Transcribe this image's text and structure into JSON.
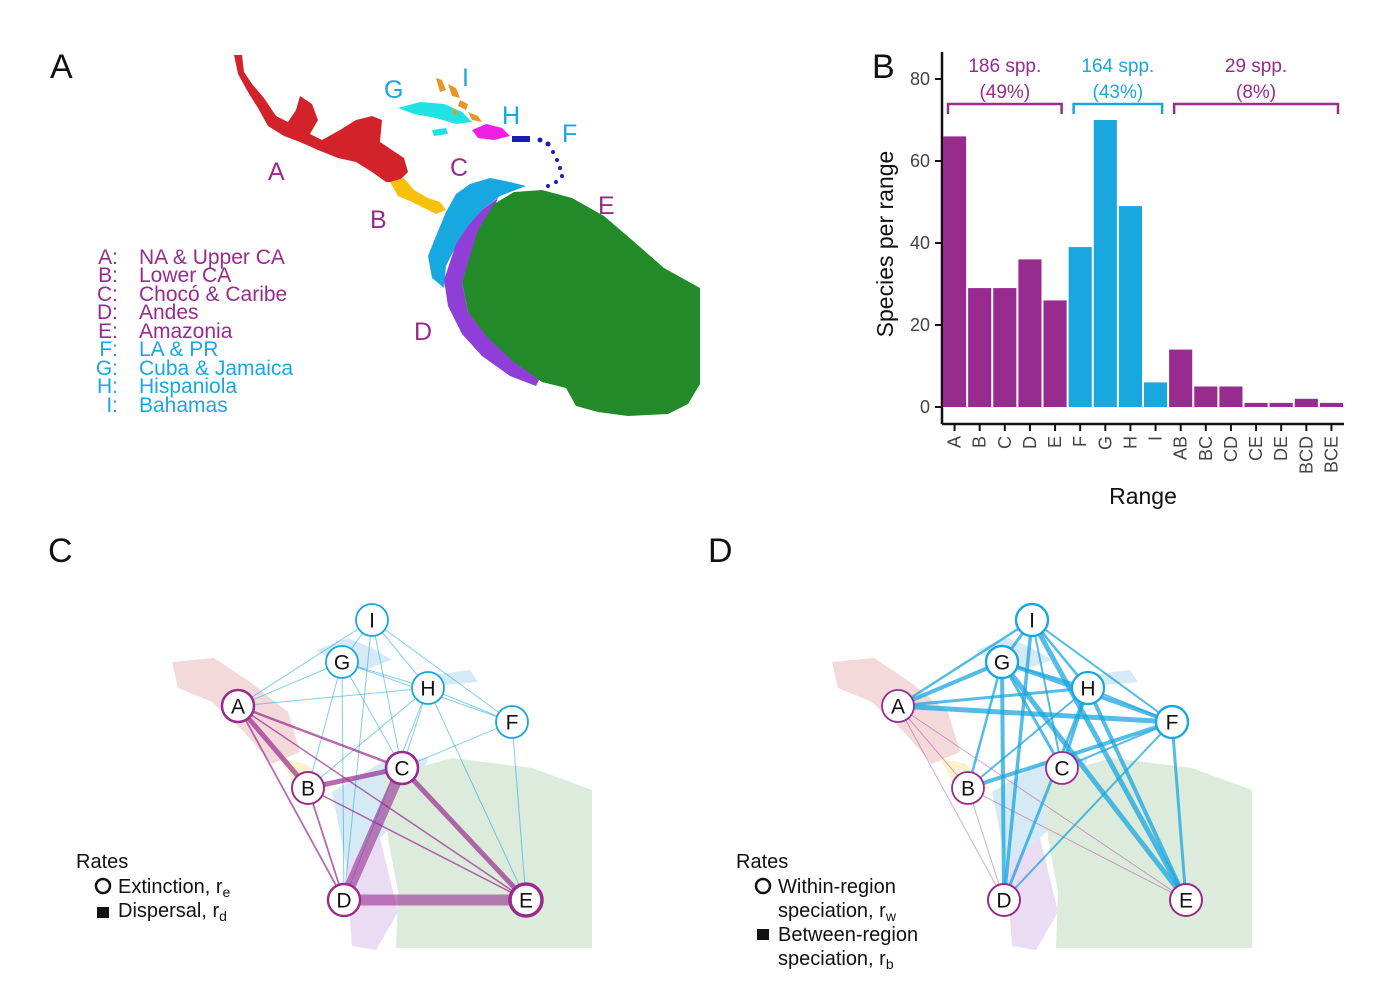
{
  "panels": {
    "a": "A",
    "b": "B",
    "c": "C",
    "d": "D"
  },
  "map_a": {
    "region_labels": [
      {
        "letter": "A",
        "color": "#972b8e"
      },
      {
        "letter": "B",
        "color": "#972b8e"
      },
      {
        "letter": "C",
        "color": "#972b8e"
      },
      {
        "letter": "D",
        "color": "#972b8e"
      },
      {
        "letter": "E",
        "color": "#972b8e"
      },
      {
        "letter": "F",
        "color": "#1aa6df"
      },
      {
        "letter": "G",
        "color": "#1aa6df"
      },
      {
        "letter": "H",
        "color": "#1aa6df"
      },
      {
        "letter": "I",
        "color": "#1aa6df"
      }
    ],
    "region_fill_colors": {
      "A": "#d2232a",
      "B": "#f7c10b",
      "C": "#18a8e0",
      "D": "#8f3fd8",
      "E": "#238a2a",
      "F": "#1c1cb8",
      "G": "#1fe3e3",
      "H": "#f01ee0",
      "I": "#e8962a"
    },
    "legend": [
      {
        "code": "A:",
        "name": "NA & Upper CA",
        "color": "#972b8e"
      },
      {
        "code": "B:",
        "name": "Lower CA",
        "color": "#972b8e"
      },
      {
        "code": "C:",
        "name": "Chocó & Caribe",
        "color": "#972b8e"
      },
      {
        "code": "D:",
        "name": "Andes",
        "color": "#972b8e"
      },
      {
        "code": "E:",
        "name": "Amazonia",
        "color": "#972b8e"
      },
      {
        "code": "F:",
        "name": "LA & PR",
        "color": "#1aa6df"
      },
      {
        "code": "G:",
        "name": "Cuba & Jamaica",
        "color": "#1aa6df"
      },
      {
        "code": "H:",
        "name": "Hispaniola",
        "color": "#1aa6df"
      },
      {
        "code": "I:",
        "name": "Bahamas",
        "color": "#1aa6df"
      }
    ]
  },
  "chart_data": {
    "type": "bar",
    "xlabel": "Range",
    "ylabel": "Species per range",
    "ylim": [
      0,
      80
    ],
    "yticks": [
      "0",
      "20",
      "40",
      "60",
      "80"
    ],
    "categories": [
      "A",
      "B",
      "C",
      "D",
      "E",
      "F",
      "G",
      "H",
      "I",
      "AB",
      "BC",
      "CD",
      "CE",
      "DE",
      "BCD",
      "BCE"
    ],
    "values": [
      66,
      29,
      29,
      36,
      26,
      39,
      70,
      49,
      6,
      14,
      5,
      5,
      1,
      1,
      2,
      1
    ],
    "bar_colors": [
      "#972b8e",
      "#972b8e",
      "#972b8e",
      "#972b8e",
      "#972b8e",
      "#1aa6df",
      "#1aa6df",
      "#1aa6df",
      "#1aa6df",
      "#972b8e",
      "#972b8e",
      "#972b8e",
      "#972b8e",
      "#972b8e",
      "#972b8e",
      "#972b8e"
    ],
    "groups": [
      {
        "count": "186 spp.",
        "percent": "(49%)",
        "color": "#972b8e"
      },
      {
        "count": "164 spp.",
        "percent": "(43%)",
        "color": "#1aa6df"
      },
      {
        "count": "29 spp.",
        "percent": "(8%)",
        "color": "#972b8e"
      }
    ],
    "grid": false
  },
  "network_colors": {
    "mainland": "#972b8e",
    "island": "#1aa6df"
  },
  "network_c": {
    "legend_title": "Rates",
    "legend_items": [
      {
        "symbol": "circle",
        "label": "Extinction, r",
        "sub": "e"
      },
      {
        "symbol": "square",
        "label": "Dispersal, r",
        "sub": "d"
      }
    ]
  },
  "network_d": {
    "legend_title": "Rates",
    "legend_items": [
      {
        "symbol": "circle",
        "line1": "Within-region",
        "label": "speciation, r",
        "sub": "w"
      },
      {
        "symbol": "square",
        "line1": "Between-region",
        "label": "speciation, r",
        "sub": "b"
      }
    ]
  }
}
